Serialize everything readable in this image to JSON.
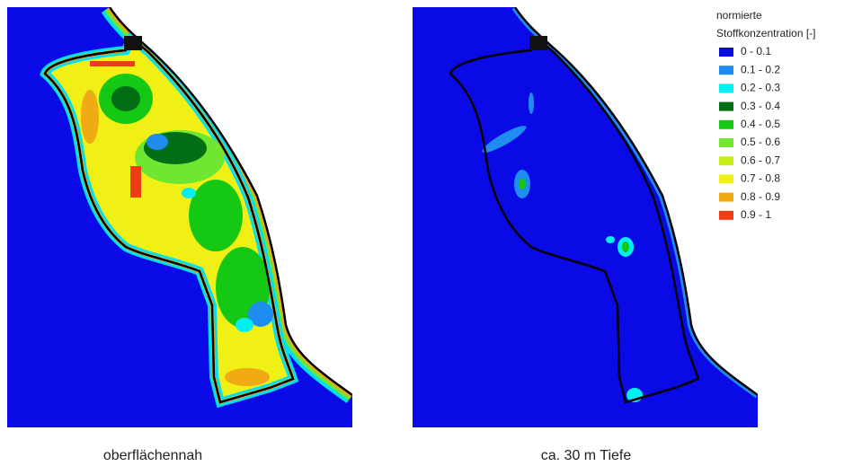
{
  "panels": [
    {
      "caption": "oberflächennah"
    },
    {
      "caption": "ca. 30 m Tiefe"
    }
  ],
  "legend": {
    "title_lines": [
      "normierte",
      "Stoffkonzentration [-]"
    ],
    "entries": [
      {
        "label": "0 - 0.1",
        "color": "#0a0ae6"
      },
      {
        "label": "0.1 - 0.2",
        "color": "#1e8cf0"
      },
      {
        "label": "0.2 - 0.3",
        "color": "#00f0f0"
      },
      {
        "label": "0.3 - 0.4",
        "color": "#006e14"
      },
      {
        "label": "0.4 - 0.5",
        "color": "#14c814"
      },
      {
        "label": "0.5 - 0.6",
        "color": "#6ee632"
      },
      {
        "label": "0.6 - 0.7",
        "color": "#c8f014"
      },
      {
        "label": "0.7 - 0.8",
        "color": "#f0f014"
      },
      {
        "label": "0.8 - 0.9",
        "color": "#f0aa14"
      },
      {
        "label": "0.9 - 1",
        "color": "#f03c14"
      }
    ]
  }
}
